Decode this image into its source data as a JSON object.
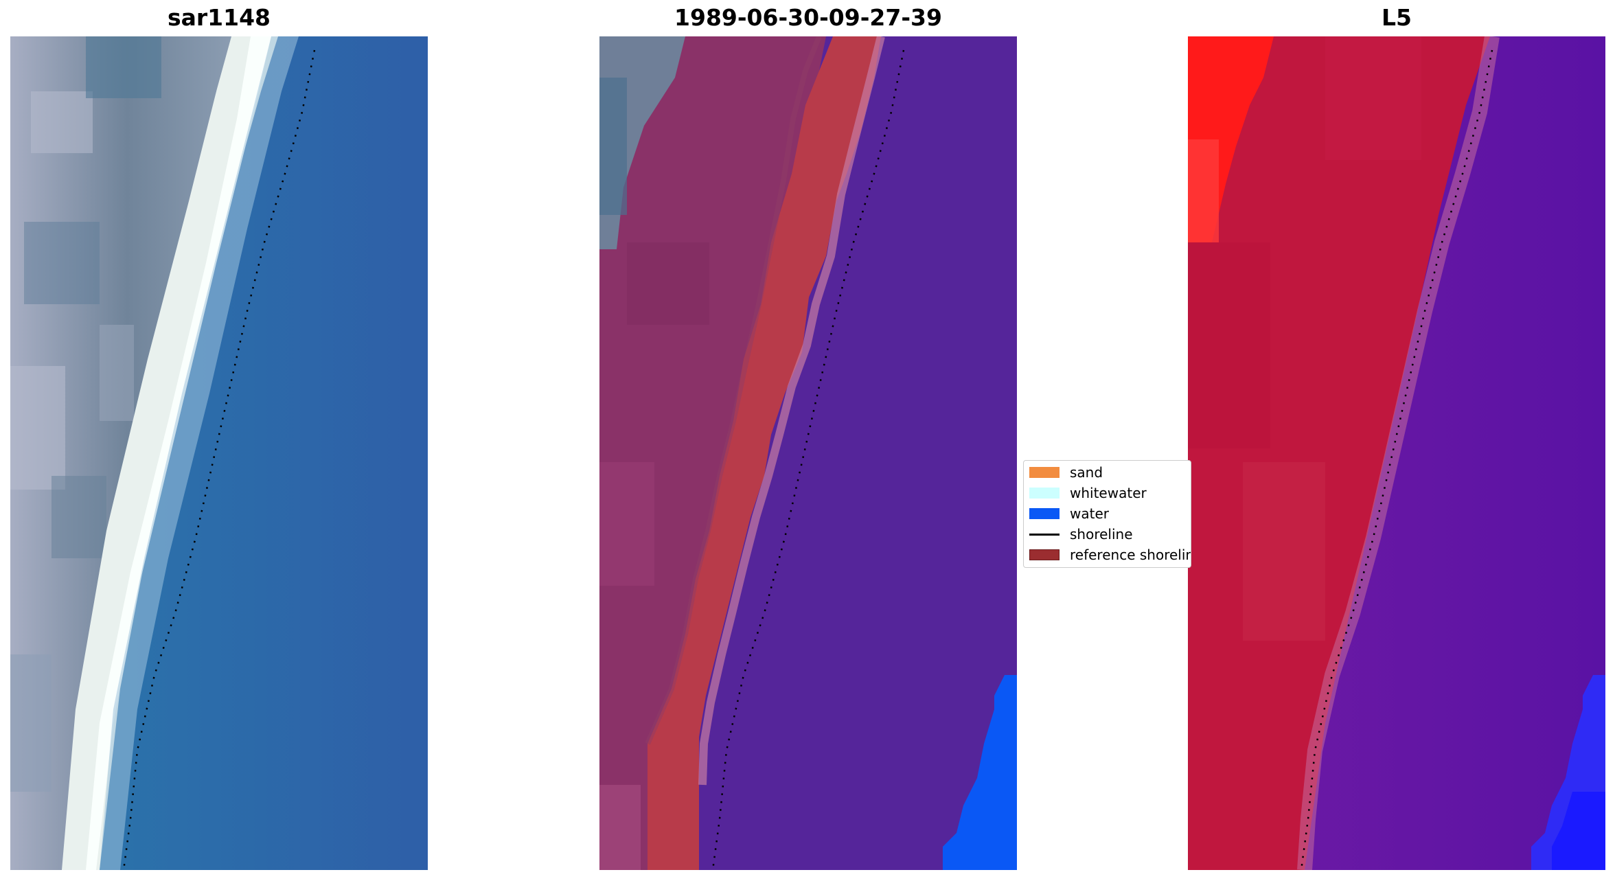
{
  "panels": {
    "left_title": "sar1148",
    "middle_title": "1989-06-30-09-27-39",
    "right_title": "L5"
  },
  "legend": {
    "items": [
      {
        "label": "sand",
        "color": "#f28c3f",
        "kind": "patch"
      },
      {
        "label": "whitewater",
        "color": "#ccffff",
        "kind": "patch"
      },
      {
        "label": "water",
        "color": "#0a58f5",
        "kind": "patch"
      },
      {
        "label": "shoreline",
        "color": "#000000",
        "kind": "line"
      },
      {
        "label": "reference shoreline",
        "color": "#9b2d30",
        "kind": "patch"
      }
    ]
  },
  "colors": {
    "sea_blue": "#2e6aa8",
    "land_gray": "#7f8ea3",
    "whitewater_white": "#f2f7f5",
    "class_purple": "#55259a",
    "reference_red": "#b83b4a",
    "land_magenta": "#8a3268",
    "water_blue": "#0a58f5",
    "red_band": "#c0173e",
    "bright_red": "#ff1a1a",
    "violet": "#6214a2",
    "bright_blue": "#1a1aff"
  }
}
